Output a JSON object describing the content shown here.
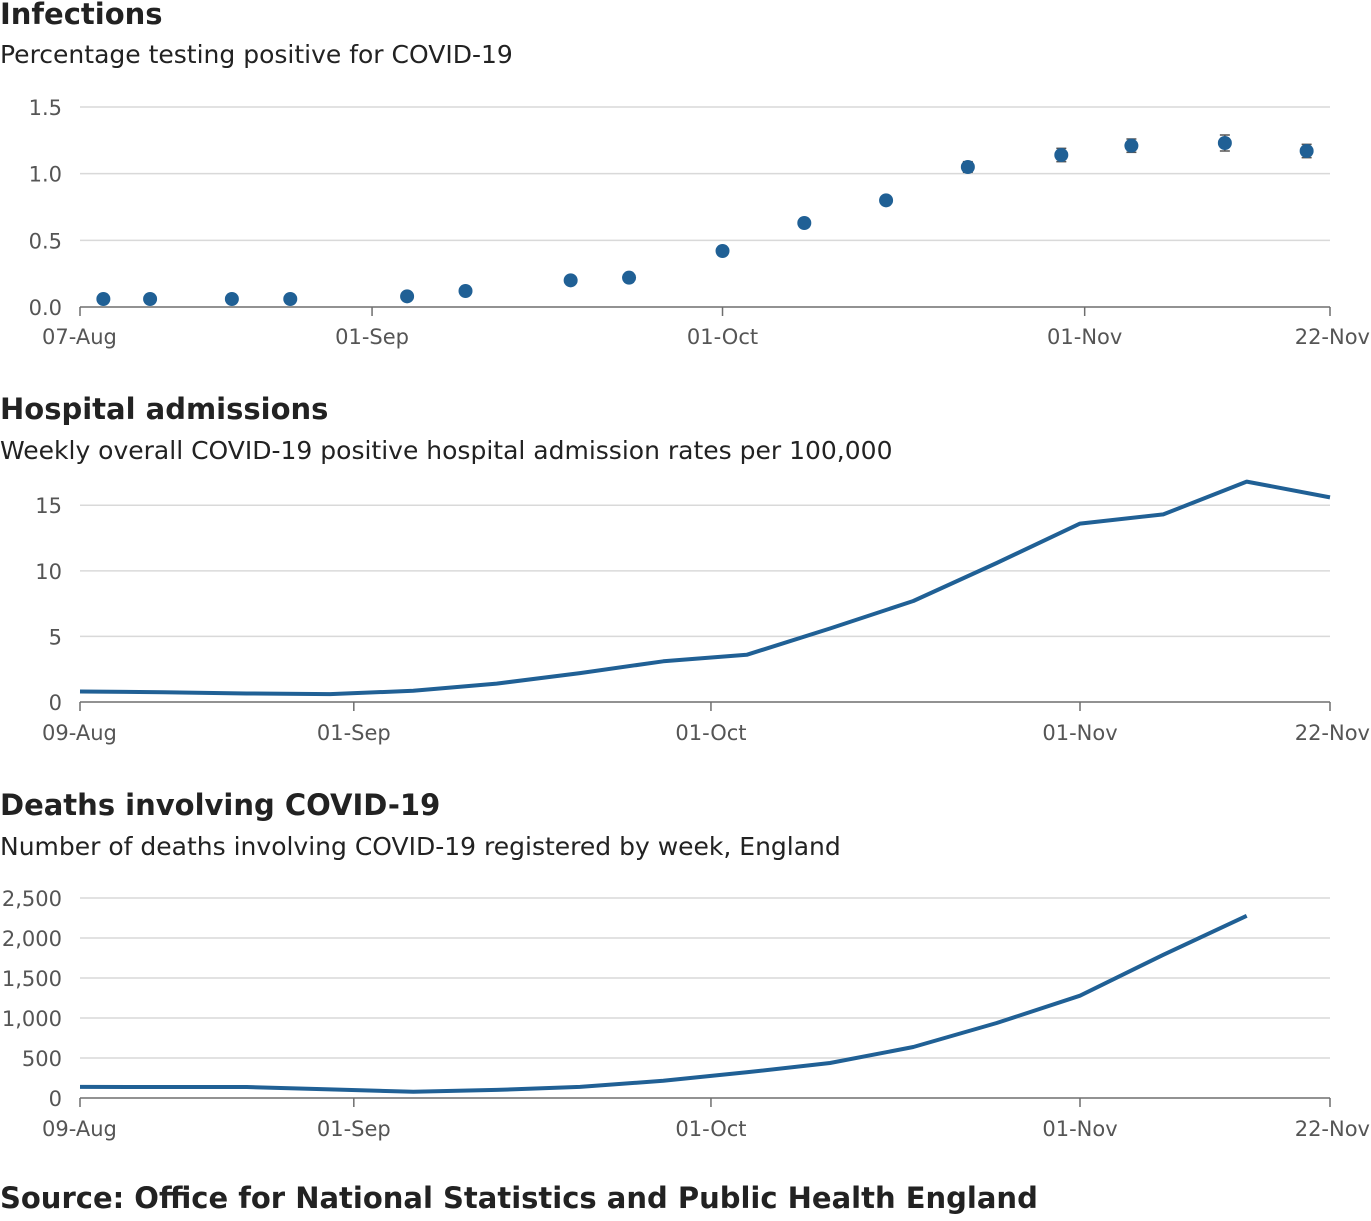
{
  "colors": {
    "series": "#206095",
    "grid": "#d9d9d9",
    "axis": "#6e6e6e",
    "tick_text": "#555555",
    "error_bar": "#555555"
  },
  "source": "Source: Office for National Statistics and Public Health England",
  "chart_data": [
    {
      "type": "scatter",
      "title": "Infections",
      "subtitle": "Percentage testing positive for COVID-19",
      "error_bars": true,
      "grid": true,
      "ylim": [
        0,
        1.5
      ],
      "yticks": [
        0,
        0.5,
        1,
        1.5
      ],
      "ytick_labels": [
        "0.0",
        "0.5",
        "1.0",
        "1.5"
      ],
      "xlim": [
        "2020-08-07",
        "2020-11-22"
      ],
      "xticks": [
        "2020-08-07",
        "2020-09-01",
        "2020-10-01",
        "2020-11-01",
        "2020-11-22"
      ],
      "xtick_labels": [
        "07-Aug",
        "01-Sep",
        "01-Oct",
        "01-Nov",
        "22-Nov"
      ],
      "x": [
        "2020-08-09",
        "2020-08-13",
        "2020-08-20",
        "2020-08-25",
        "2020-09-04",
        "2020-09-09",
        "2020-09-18",
        "2020-09-23",
        "2020-10-01",
        "2020-10-08",
        "2020-10-15",
        "2020-10-22",
        "2020-10-30",
        "2020-11-05",
        "2020-11-13",
        "2020-11-20"
      ],
      "values": [
        0.06,
        0.06,
        0.06,
        0.06,
        0.08,
        0.12,
        0.2,
        0.22,
        0.42,
        0.63,
        0.8,
        1.05,
        1.14,
        1.21,
        1.23,
        1.17
      ],
      "lower": [
        0.05,
        0.05,
        0.05,
        0.05,
        0.07,
        0.11,
        0.18,
        0.2,
        0.4,
        0.6,
        0.77,
        1.01,
        1.09,
        1.16,
        1.17,
        1.12
      ],
      "upper": [
        0.07,
        0.07,
        0.07,
        0.07,
        0.09,
        0.13,
        0.22,
        0.24,
        0.44,
        0.66,
        0.83,
        1.09,
        1.19,
        1.26,
        1.29,
        1.22
      ]
    },
    {
      "type": "line",
      "title": "Hospital admissions",
      "subtitle": "Weekly overall COVID-19 positive hospital admission rates per 100,000",
      "grid": true,
      "ylim": [
        0,
        17
      ],
      "yticks": [
        0,
        5,
        10,
        15
      ],
      "ytick_labels": [
        "0",
        "5",
        "10",
        "15"
      ],
      "xlim": [
        "2020-08-09",
        "2020-11-22"
      ],
      "xticks": [
        "2020-08-09",
        "2020-09-01",
        "2020-10-01",
        "2020-11-01",
        "2020-11-22"
      ],
      "xtick_labels": [
        "09-Aug",
        "01-Sep",
        "01-Oct",
        "01-Nov",
        "22-Nov"
      ],
      "x": [
        "2020-08-09",
        "2020-08-16",
        "2020-08-23",
        "2020-08-30",
        "2020-09-06",
        "2020-09-13",
        "2020-09-20",
        "2020-09-27",
        "2020-10-04",
        "2020-10-11",
        "2020-10-18",
        "2020-10-25",
        "2020-11-01",
        "2020-11-08",
        "2020-11-15",
        "2020-11-22"
      ],
      "values": [
        0.8,
        0.75,
        0.65,
        0.6,
        0.85,
        1.4,
        2.2,
        3.1,
        3.6,
        5.6,
        7.7,
        10.6,
        13.6,
        14.3,
        16.8,
        15.6
      ]
    },
    {
      "type": "line",
      "title": "Deaths involving COVID-19",
      "subtitle": "Number of deaths involving COVID-19 registered by week, England",
      "grid": true,
      "ylim": [
        0,
        2500
      ],
      "yticks": [
        0,
        500,
        1000,
        1500,
        2000,
        2500
      ],
      "ytick_labels": [
        "0",
        "500",
        "1,000",
        "1,500",
        "2,000",
        "2,500"
      ],
      "xlim": [
        "2020-08-09",
        "2020-11-22"
      ],
      "xticks": [
        "2020-08-09",
        "2020-09-01",
        "2020-10-01",
        "2020-11-01",
        "2020-11-22"
      ],
      "xtick_labels": [
        "09-Aug",
        "01-Sep",
        "01-Oct",
        "01-Nov",
        "22-Nov"
      ],
      "x": [
        "2020-08-09",
        "2020-08-16",
        "2020-08-23",
        "2020-08-30",
        "2020-09-06",
        "2020-09-13",
        "2020-09-20",
        "2020-09-27",
        "2020-10-04",
        "2020-10-11",
        "2020-10-18",
        "2020-10-25",
        "2020-11-01",
        "2020-11-08",
        "2020-11-15"
      ],
      "values": [
        139,
        138,
        138,
        107,
        78,
        101,
        139,
        215,
        321,
        438,
        637,
        937,
        1279,
        1790,
        2278
      ]
    }
  ]
}
